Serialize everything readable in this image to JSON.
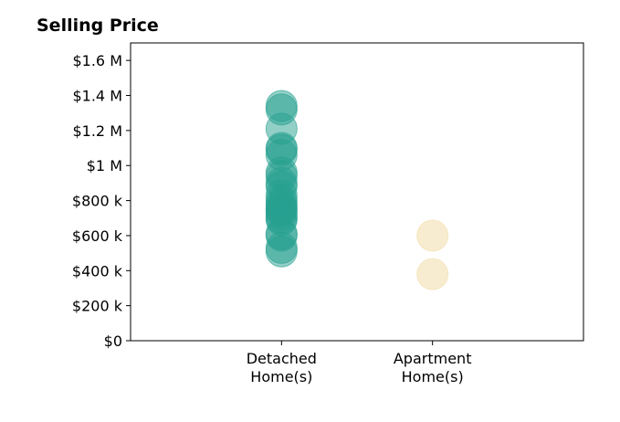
{
  "chart_data": {
    "type": "scatter",
    "title": "Selling Price",
    "xlabel": "",
    "ylabel": "",
    "categories": [
      "Detached\nHome(s)",
      "Apartment\nHome(s)"
    ],
    "ylim": [
      0,
      1700000
    ],
    "yticks": [
      {
        "value": 0,
        "label": "$0"
      },
      {
        "value": 200000,
        "label": "$200 k"
      },
      {
        "value": 400000,
        "label": "$400 k"
      },
      {
        "value": 600000,
        "label": "$600 k"
      },
      {
        "value": 800000,
        "label": "$800 k"
      },
      {
        "value": 1000000,
        "label": "$1 M"
      },
      {
        "value": 1200000,
        "label": "$1.2 M"
      },
      {
        "value": 1400000,
        "label": "$1.4 M"
      },
      {
        "value": 1600000,
        "label": "$1.6 M"
      }
    ],
    "grid": false,
    "series": [
      {
        "category": "Detached\nHome(s)",
        "color": "#26a090",
        "opacity": 0.5,
        "values": [
          1340000,
          1320000,
          1210000,
          1100000,
          1090000,
          1060000,
          960000,
          940000,
          900000,
          880000,
          830000,
          800000,
          780000,
          760000,
          750000,
          740000,
          720000,
          700000,
          690000,
          610000,
          600000,
          530000,
          510000
        ]
      },
      {
        "category": "Apartment\nHome(s)",
        "color": "#f3dfb0",
        "opacity": 0.6,
        "values": [
          600000,
          380000
        ]
      }
    ]
  }
}
